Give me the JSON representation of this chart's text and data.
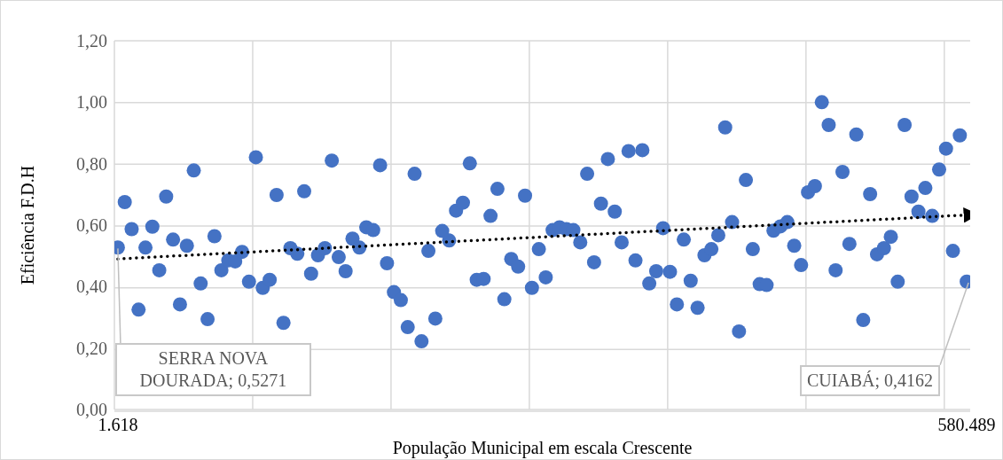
{
  "chart_data": {
    "type": "scatter",
    "xlabel": "População Municipal em escala Crescente",
    "ylabel": "Eficiência F.D.H",
    "categories": [
      "1.618",
      null,
      null,
      null,
      null,
      null,
      null,
      null,
      null,
      null,
      null,
      null,
      null,
      null,
      null,
      null,
      null,
      null,
      null,
      null,
      null,
      null,
      null,
      null,
      null,
      null,
      null,
      null,
      null,
      null,
      null,
      null,
      null,
      null,
      null,
      null,
      null,
      null,
      null,
      null,
      null,
      null,
      null,
      null,
      null,
      null,
      null,
      null,
      null,
      null,
      null,
      null,
      null,
      null,
      null,
      null,
      null,
      null,
      null,
      null,
      null,
      null,
      null,
      null,
      null,
      null,
      null,
      null,
      null,
      null,
      null,
      null,
      null,
      null,
      null,
      null,
      null,
      null,
      null,
      null,
      null,
      null,
      null,
      null,
      null,
      null,
      null,
      null,
      null,
      null,
      null,
      null,
      null,
      null,
      null,
      null,
      null,
      null,
      null,
      null,
      null,
      null,
      null,
      null,
      null,
      null,
      null,
      null,
      null,
      null,
      null,
      null,
      null,
      null,
      null,
      null,
      null,
      null,
      null,
      null,
      null,
      null,
      null,
      "580.489"
    ],
    "series": [
      {
        "color": "#4472c4",
        "marker": "circle",
        "values": [
          0.5271,
          0.675,
          0.587,
          0.325,
          0.527,
          0.595,
          0.453,
          0.693,
          0.553,
          0.342,
          0.533,
          0.778,
          0.41,
          0.294,
          0.564,
          0.453,
          0.485,
          0.482,
          0.513,
          0.416,
          0.821,
          0.396,
          0.422,
          0.698,
          0.282,
          0.525,
          0.507,
          0.71,
          0.442,
          0.502,
          0.525,
          0.81,
          0.496,
          0.45,
          0.556,
          0.527,
          0.593,
          0.584,
          0.795,
          0.476,
          0.382,
          0.356,
          0.268,
          0.767,
          0.222,
          0.516,
          0.296,
          0.581,
          0.55,
          0.647,
          0.673,
          0.801,
          0.422,
          0.425,
          0.63,
          0.718,
          0.359,
          0.49,
          0.465,
          0.696,
          0.396,
          0.522,
          0.43,
          0.584,
          0.593,
          0.587,
          0.584,
          0.544,
          0.767,
          0.479,
          0.67,
          0.815,
          0.644,
          0.544,
          0.841,
          0.485,
          0.844,
          0.41,
          0.45,
          0.59,
          0.448,
          0.342,
          0.553,
          0.419,
          0.331,
          0.502,
          0.522,
          0.567,
          0.918,
          0.61,
          0.254,
          0.747,
          0.522,
          0.408,
          0.405,
          0.582,
          0.596,
          0.61,
          0.533,
          0.47,
          0.707,
          0.727,
          1.0,
          0.926,
          0.453,
          0.773,
          0.539,
          0.895,
          0.291,
          0.701,
          0.505,
          0.525,
          0.562,
          0.416,
          0.926,
          0.693,
          0.644,
          0.721,
          0.63,
          0.781,
          0.849,
          0.516,
          0.892,
          0.4162
        ]
      },
      {
        "type": "line",
        "color": "#000000",
        "line_style": "dotted",
        "marker": "none",
        "values": [
          0.49,
          null,
          null,
          null,
          null,
          null,
          null,
          null,
          null,
          null,
          null,
          null,
          null,
          null,
          null,
          null,
          null,
          null,
          null,
          null,
          null,
          null,
          null,
          null,
          null,
          null,
          null,
          null,
          null,
          null,
          null,
          null,
          null,
          null,
          null,
          null,
          null,
          null,
          null,
          null,
          null,
          null,
          null,
          null,
          null,
          null,
          null,
          null,
          null,
          null,
          null,
          null,
          null,
          null,
          null,
          null,
          null,
          null,
          null,
          null,
          null,
          null,
          null,
          null,
          null,
          null,
          null,
          null,
          null,
          null,
          null,
          null,
          null,
          null,
          null,
          null,
          null,
          null,
          null,
          null,
          null,
          null,
          null,
          null,
          null,
          null,
          null,
          null,
          null,
          null,
          null,
          null,
          null,
          null,
          null,
          null,
          null,
          null,
          null,
          null,
          null,
          null,
          null,
          null,
          null,
          null,
          null,
          null,
          null,
          null,
          null,
          null,
          null,
          null,
          null,
          null,
          null,
          null,
          null,
          null,
          null,
          null,
          null,
          0.633
        ]
      }
    ],
    "ylim": [
      0,
      1.2
    ],
    "yticks": [
      {
        "value": 0,
        "label": "0,00"
      },
      {
        "value": 0.2,
        "label": "0,20"
      },
      {
        "value": 0.4,
        "label": "0,40"
      },
      {
        "value": 0.6,
        "label": "0,60"
      },
      {
        "value": 0.8,
        "label": "0,80"
      },
      {
        "value": 1,
        "label": "1,00"
      },
      {
        "value": 1.2,
        "label": "1,20"
      }
    ],
    "grid": true,
    "annotations": [
      {
        "text": "SERRA NOVA DOURADA; 0,5271",
        "x": "1.618",
        "y": 0.5271
      },
      {
        "text": "CUIABÁ; 0,4162",
        "x": "580.489",
        "y": 0.4162
      }
    ]
  }
}
